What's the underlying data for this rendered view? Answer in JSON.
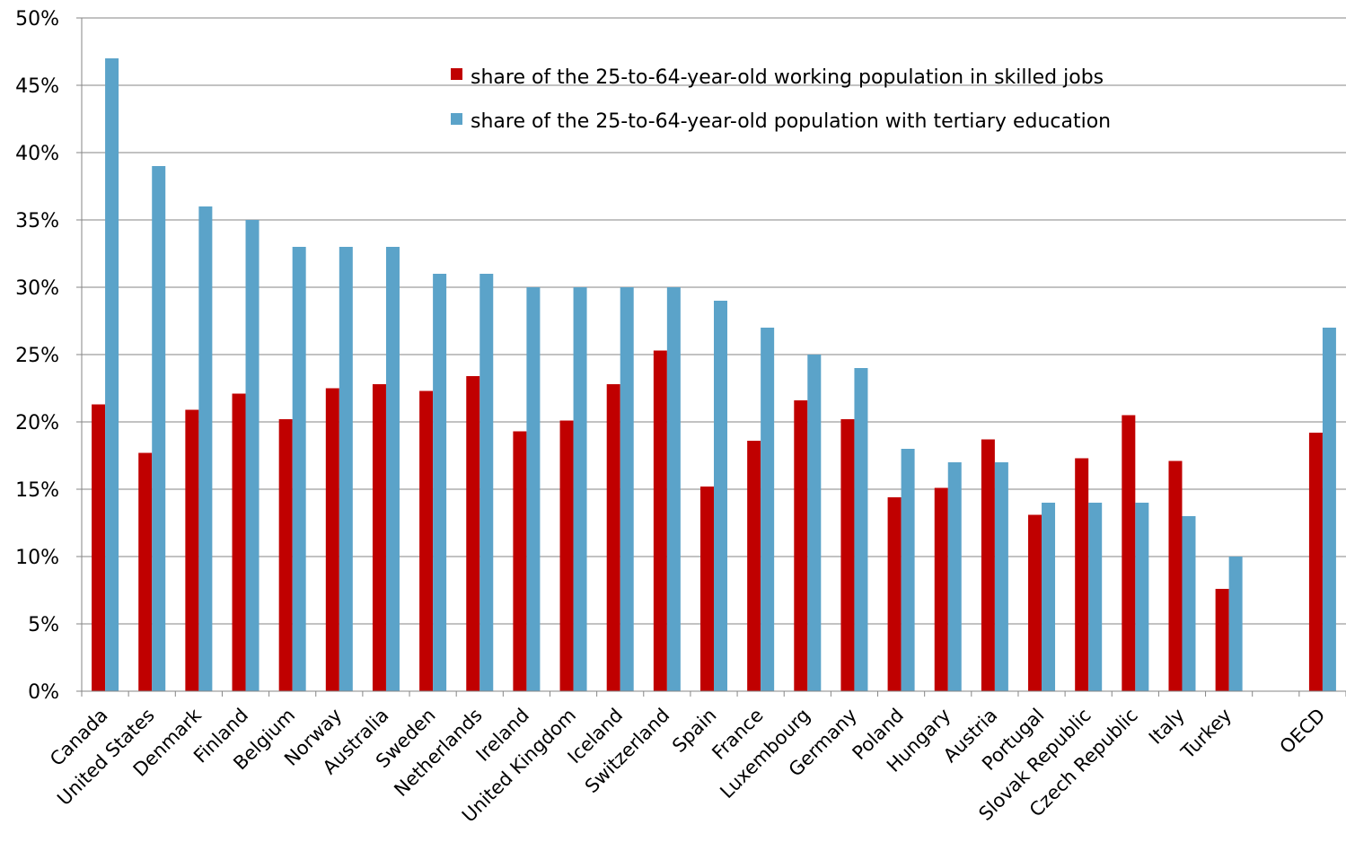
{
  "chart_data": {
    "type": "bar",
    "categories": [
      "Canada",
      "United States",
      "Denmark",
      "Finland",
      "Belgium",
      "Norway",
      "Australia",
      "Sweden",
      "Netherlands",
      "Ireland",
      "United Kingdom",
      "Iceland",
      "Switzerland",
      "Spain",
      "France",
      "Luxembourg",
      "Germany",
      "Poland",
      "Hungary",
      "Austria",
      "Portugal",
      "Slovak Republic",
      "Czech Republic",
      "Italy",
      "Turkey",
      "",
      "OECD"
    ],
    "series": [
      {
        "name": "share of the 25-to-64-year-old working population in skilled jobs",
        "color": "#c00000",
        "values": [
          21.3,
          17.7,
          20.9,
          22.1,
          20.2,
          22.5,
          22.8,
          22.3,
          23.4,
          19.3,
          20.1,
          22.8,
          25.3,
          15.2,
          18.6,
          21.6,
          20.2,
          14.4,
          15.1,
          18.7,
          13.1,
          17.3,
          20.5,
          17.1,
          7.6,
          null,
          19.2
        ]
      },
      {
        "name": "share of the 25-to-64-year-old population with tertiary education",
        "color": "#5ba3c9",
        "values": [
          47,
          39,
          36,
          35,
          33,
          33,
          33,
          31,
          31,
          30,
          30,
          30,
          30,
          29,
          27,
          25,
          24,
          18,
          17,
          17,
          14,
          14,
          14,
          13,
          10,
          null,
          27
        ]
      }
    ],
    "yticks": [
      "0%",
      "5%",
      "10%",
      "15%",
      "20%",
      "25%",
      "30%",
      "35%",
      "40%",
      "45%",
      "50%"
    ],
    "ylim": [
      0,
      50
    ],
    "grid": true,
    "legend": "top-center"
  }
}
